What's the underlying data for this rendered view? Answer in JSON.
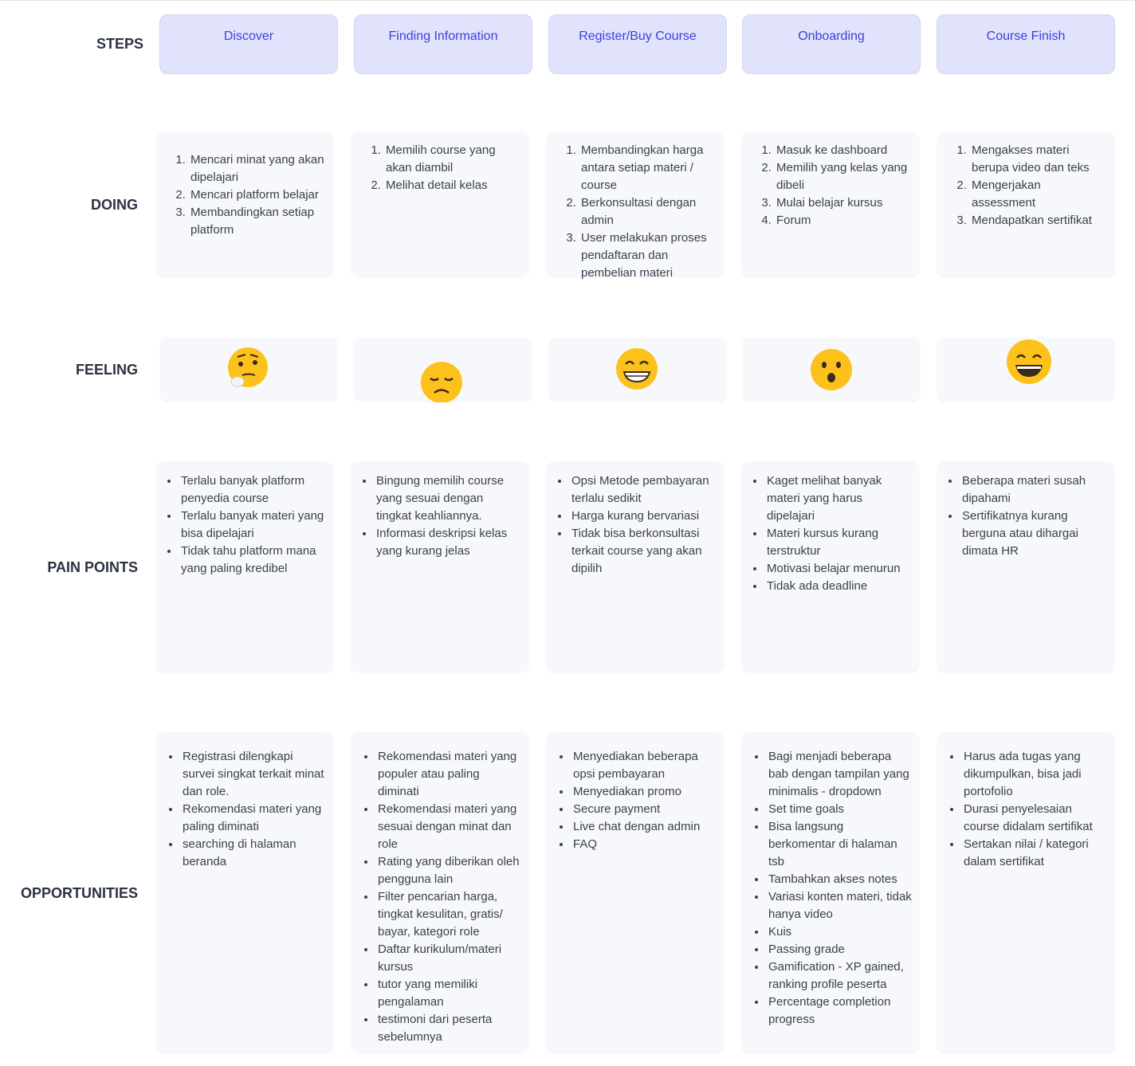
{
  "row_labels": {
    "steps": "STEPS",
    "doing": "DOING",
    "feeling": "FEELING",
    "pain_points": "PAIN POINTS",
    "opportunities": "OPPORTUNITIES"
  },
  "columns": [
    {
      "step": "Discover",
      "doing": [
        "Mencari minat yang akan dipelajari",
        "Mencari platform belajar",
        "Membandingkan setiap platform"
      ],
      "pain_points": [
        "Terlalu banyak platform penyedia course",
        "Terlalu banyak materi yang bisa dipelajari",
        "Tidak tahu platform mana yang paling kredibel"
      ],
      "opportunities": [
        "Registrasi dilengkapi survei singkat terkait minat dan role.",
        "Rekomendasi materi yang paling diminati",
        "searching di halaman beranda"
      ]
    },
    {
      "step": "Finding Information",
      "doing": [
        "Memilih course yang akan diambil",
        "Melihat detail kelas"
      ],
      "pain_points": [
        "Bingung memilih course yang sesuai dengan tingkat keahliannya.",
        "Informasi deskripsi kelas yang kurang jelas"
      ],
      "opportunities": [
        "Rekomendasi materi yang populer atau paling diminati",
        "Rekomendasi materi yang sesuai dengan minat dan role",
        "Rating yang diberikan oleh pengguna lain",
        "Filter pencarian harga, tingkat kesulitan, gratis/ bayar, kategori role",
        "Daftar kurikulum/materi kursus",
        "tutor yang memiliki pengalaman",
        "testimoni dari peserta sebelumnya"
      ]
    },
    {
      "step": "Register/Buy Course",
      "doing": [
        "Membandingkan harga antara setiap materi / course",
        "Berkonsultasi dengan admin",
        "User melakukan proses pendaftaran dan pembelian materi"
      ],
      "pain_points": [
        "Opsi Metode pembayaran terlalu sedikit",
        "Harga kurang bervariasi",
        "Tidak bisa berkonsultasi terkait course yang akan dipilih"
      ],
      "opportunities": [
        "Menyediakan beberapa opsi pembayaran",
        "Menyediakan promo",
        "Secure payment",
        "Live chat dengan admin",
        "FAQ"
      ]
    },
    {
      "step": "Onboarding",
      "doing": [
        "Masuk ke dashboard",
        "Memilih yang kelas yang dibeli",
        "Mulai belajar kursus",
        "Forum"
      ],
      "pain_points": [
        "Kaget melihat banyak materi yang harus dipelajari",
        "Materi kursus kurang terstruktur",
        "Motivasi belajar menurun",
        "Tidak ada deadline"
      ],
      "opportunities": [
        "Bagi menjadi beberapa bab dengan tampilan yang minimalis - dropdown",
        "Set time goals",
        "Bisa langsung berkomentar di halaman tsb",
        "Tambahkan akses notes",
        "Variasi konten materi, tidak hanya video",
        "Kuis",
        "Passing grade",
        "Gamification - XP gained, ranking profile peserta",
        "Percentage completion progress"
      ]
    },
    {
      "step": "Course Finish",
      "doing": [
        "Mengakses materi berupa video dan teks",
        "Mengerjakan assessment",
        "Mendapatkan sertifikat"
      ],
      "pain_points": [
        "Beberapa materi susah dipahami",
        "Sertifikatnya kurang berguna atau dihargai dimata HR"
      ],
      "opportunities": [
        "Harus ada tugas yang dikumpulkan, bisa jadi portofolio",
        "Durasi penyelesaian course didalam sertifikat",
        "Sertakan nilai / kategori dalam sertifikat"
      ]
    }
  ]
}
